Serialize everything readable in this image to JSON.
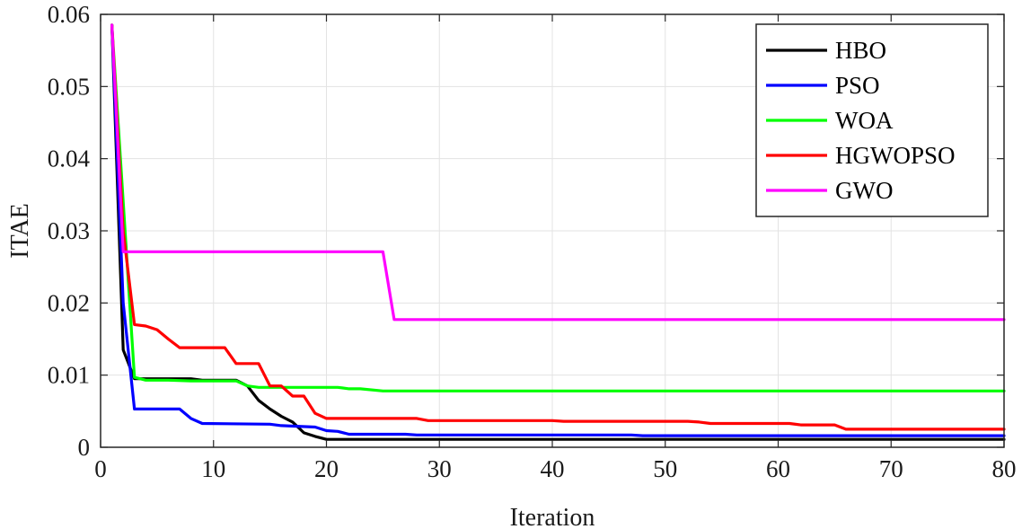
{
  "chart_data": {
    "type": "line",
    "title": "",
    "xlabel": "Iteration",
    "ylabel": "ITAE",
    "xlim": [
      0,
      80
    ],
    "ylim": [
      0,
      0.06
    ],
    "xticks": [
      0,
      10,
      20,
      30,
      40,
      50,
      60,
      70,
      80
    ],
    "xtick_labels": [
      "0",
      "10",
      "20",
      "30",
      "40",
      "50",
      "60",
      "70",
      "80"
    ],
    "yticks": [
      0,
      0.01,
      0.02,
      0.03,
      0.04,
      0.05,
      0.06
    ],
    "ytick_labels": [
      "0",
      "0.01",
      "0.02",
      "0.03",
      "0.04",
      "0.05",
      "0.06"
    ],
    "grid": true,
    "legend_position": "top-right",
    "series": [
      {
        "name": "HBO",
        "color": "#000000",
        "points": [
          [
            1,
            0.0585
          ],
          [
            2,
            0.0135
          ],
          [
            3,
            0.0095
          ],
          [
            7,
            0.0095
          ],
          [
            8,
            0.0095
          ],
          [
            9,
            0.0093
          ],
          [
            12,
            0.0093
          ],
          [
            13,
            0.0085
          ],
          [
            14,
            0.0065
          ],
          [
            15,
            0.0053
          ],
          [
            16,
            0.0043
          ],
          [
            17,
            0.0035
          ],
          [
            18,
            0.002
          ],
          [
            19,
            0.0015
          ],
          [
            20,
            0.0011
          ],
          [
            80,
            0.0011
          ]
        ]
      },
      {
        "name": "PSO",
        "color": "#0000ff",
        "points": [
          [
            1,
            0.0585
          ],
          [
            2,
            0.02
          ],
          [
            3,
            0.0053
          ],
          [
            7,
            0.0053
          ],
          [
            8,
            0.004
          ],
          [
            9,
            0.0033
          ],
          [
            15,
            0.0032
          ],
          [
            16,
            0.003
          ],
          [
            19,
            0.0028
          ],
          [
            20,
            0.0023
          ],
          [
            21,
            0.0022
          ],
          [
            22,
            0.0018
          ],
          [
            27,
            0.0018
          ],
          [
            28,
            0.0017
          ],
          [
            47,
            0.0017
          ],
          [
            48,
            0.0016
          ],
          [
            80,
            0.0016
          ]
        ]
      },
      {
        "name": "WOA",
        "color": "#00ff00",
        "points": [
          [
            1,
            0.0585
          ],
          [
            3,
            0.0097
          ],
          [
            4,
            0.0093
          ],
          [
            6,
            0.0093
          ],
          [
            8,
            0.0092
          ],
          [
            12,
            0.0092
          ],
          [
            13,
            0.0085
          ],
          [
            14,
            0.0083
          ],
          [
            21,
            0.0083
          ],
          [
            22,
            0.0081
          ],
          [
            23,
            0.0081
          ],
          [
            25,
            0.0078
          ],
          [
            80,
            0.0078
          ]
        ]
      },
      {
        "name": "HGWOPSO",
        "color": "#ff0000",
        "points": [
          [
            1,
            0.0585
          ],
          [
            2,
            0.03
          ],
          [
            3,
            0.017
          ],
          [
            4,
            0.0168
          ],
          [
            5,
            0.0163
          ],
          [
            6,
            0.015
          ],
          [
            7,
            0.0138
          ],
          [
            11,
            0.0138
          ],
          [
            12,
            0.0116
          ],
          [
            14,
            0.0116
          ],
          [
            15,
            0.0085
          ],
          [
            16,
            0.0085
          ],
          [
            17,
            0.0071
          ],
          [
            18,
            0.0071
          ],
          [
            19,
            0.0047
          ],
          [
            20,
            0.004
          ],
          [
            28,
            0.004
          ],
          [
            29,
            0.0037
          ],
          [
            40,
            0.0037
          ],
          [
            41,
            0.0036
          ],
          [
            52,
            0.0036
          ],
          [
            53,
            0.0035
          ],
          [
            54,
            0.0033
          ],
          [
            61,
            0.0033
          ],
          [
            62,
            0.0031
          ],
          [
            65,
            0.0031
          ],
          [
            66,
            0.0025
          ],
          [
            80,
            0.0025
          ]
        ]
      },
      {
        "name": "GWO",
        "color": "#ff00ff",
        "points": [
          [
            1,
            0.0585
          ],
          [
            2,
            0.0271
          ],
          [
            25,
            0.0271
          ],
          [
            26,
            0.0177
          ],
          [
            80,
            0.0177
          ]
        ]
      }
    ]
  }
}
